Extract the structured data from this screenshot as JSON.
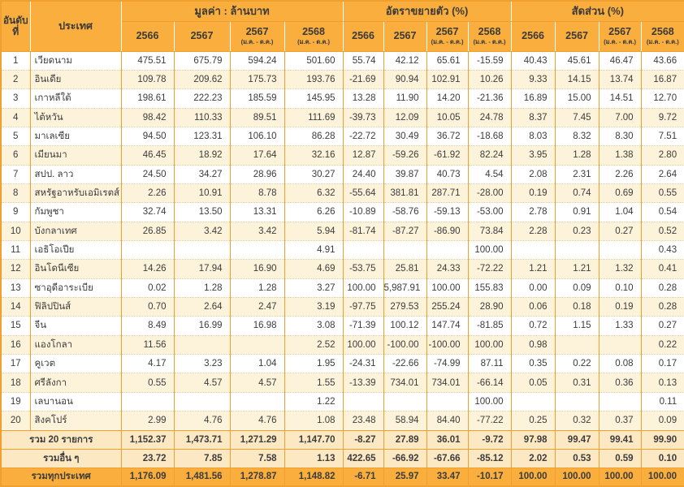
{
  "colors": {
    "header_bg": "#F9AE3D",
    "row_bg": "#FFFFFF",
    "row_alt_bg": "#FDF3DA",
    "summary_bg": "#FCE8C3",
    "total_bg": "#F9AE3D",
    "border": "#EFA02F",
    "dotted_border": "#EBCA8E",
    "text": "#3C3C3C"
  },
  "table": {
    "header": {
      "rank_label": "อันดับที่",
      "country_label": "ประเทศ",
      "groups": [
        "มูลค่า : ล้านบาท",
        "อัตราขยายตัว (%)",
        "สัดส่วน (%)"
      ],
      "year_columns": [
        {
          "year": "2566",
          "sub": ""
        },
        {
          "year": "2567",
          "sub": ""
        },
        {
          "year": "2567",
          "sub": "(ม.ค. - ต.ค.)"
        },
        {
          "year": "2568",
          "sub": "(ม.ค. - ต.ค.)"
        }
      ]
    },
    "rows": [
      {
        "rank": "1",
        "country": "เวียดนาม",
        "values": [
          "475.51",
          "675.79",
          "594.24",
          "501.60"
        ],
        "growth": [
          "55.74",
          "42.12",
          "65.61",
          "-15.59"
        ],
        "share": [
          "40.43",
          "45.61",
          "46.47",
          "43.66"
        ]
      },
      {
        "rank": "2",
        "country": "อินเดีย",
        "values": [
          "109.78",
          "209.62",
          "175.73",
          "193.76"
        ],
        "growth": [
          "-21.69",
          "90.94",
          "102.91",
          "10.26"
        ],
        "share": [
          "9.33",
          "14.15",
          "13.74",
          "16.87"
        ]
      },
      {
        "rank": "3",
        "country": "เกาหลีใต้",
        "values": [
          "198.61",
          "222.23",
          "185.59",
          "145.95"
        ],
        "growth": [
          "13.28",
          "11.90",
          "14.20",
          "-21.36"
        ],
        "share": [
          "16.89",
          "15.00",
          "14.51",
          "12.70"
        ]
      },
      {
        "rank": "4",
        "country": "ไต้หวัน",
        "values": [
          "98.42",
          "110.33",
          "89.51",
          "111.69"
        ],
        "growth": [
          "-39.73",
          "12.09",
          "10.05",
          "24.78"
        ],
        "share": [
          "8.37",
          "7.45",
          "7.00",
          "9.72"
        ]
      },
      {
        "rank": "5",
        "country": "มาเลเซีย",
        "values": [
          "94.50",
          "123.31",
          "106.10",
          "86.28"
        ],
        "growth": [
          "-22.72",
          "30.49",
          "36.72",
          "-18.68"
        ],
        "share": [
          "8.03",
          "8.32",
          "8.30",
          "7.51"
        ]
      },
      {
        "rank": "6",
        "country": "เมียนมา",
        "values": [
          "46.45",
          "18.92",
          "17.64",
          "32.16"
        ],
        "growth": [
          "12.87",
          "-59.26",
          "-61.92",
          "82.24"
        ],
        "share": [
          "3.95",
          "1.28",
          "1.38",
          "2.80"
        ]
      },
      {
        "rank": "7",
        "country": "สปป. ลาว",
        "values": [
          "24.50",
          "34.27",
          "28.96",
          "30.27"
        ],
        "growth": [
          "24.40",
          "39.87",
          "40.73",
          "4.54"
        ],
        "share": [
          "2.08",
          "2.31",
          "2.26",
          "2.64"
        ]
      },
      {
        "rank": "8",
        "country": "สหรัฐอาหรับเอมิเรตส์",
        "values": [
          "2.26",
          "10.91",
          "8.78",
          "6.32"
        ],
        "growth": [
          "-55.64",
          "381.81",
          "287.71",
          "-28.00"
        ],
        "share": [
          "0.19",
          "0.74",
          "0.69",
          "0.55"
        ]
      },
      {
        "rank": "9",
        "country": "กัมพูชา",
        "values": [
          "32.74",
          "13.50",
          "13.31",
          "6.26"
        ],
        "growth": [
          "-10.89",
          "-58.76",
          "-59.13",
          "-53.00"
        ],
        "share": [
          "2.78",
          "0.91",
          "1.04",
          "0.54"
        ]
      },
      {
        "rank": "10",
        "country": "บังกลาเทศ",
        "values": [
          "26.85",
          "3.42",
          "3.42",
          "5.94"
        ],
        "growth": [
          "-81.74",
          "-87.27",
          "-86.90",
          "73.84"
        ],
        "share": [
          "2.28",
          "0.23",
          "0.27",
          "0.52"
        ]
      },
      {
        "rank": "11",
        "country": "เอธิโอเปีย",
        "values": [
          "",
          "",
          "",
          "4.91"
        ],
        "growth": [
          "",
          "",
          "",
          "100.00"
        ],
        "share": [
          "",
          "",
          "",
          "0.43"
        ]
      },
      {
        "rank": "12",
        "country": "อินโดนีเซีย",
        "values": [
          "14.26",
          "17.94",
          "16.90",
          "4.69"
        ],
        "growth": [
          "-53.75",
          "25.81",
          "24.33",
          "-72.22"
        ],
        "share": [
          "1.21",
          "1.21",
          "1.32",
          "0.41"
        ]
      },
      {
        "rank": "13",
        "country": "ซาอุดีอาระเบีย",
        "values": [
          "0.02",
          "1.28",
          "1.28",
          "3.27"
        ],
        "growth": [
          "100.00",
          "5,987.91",
          "100.00",
          "155.83"
        ],
        "share": [
          "0.00",
          "0.09",
          "0.10",
          "0.28"
        ]
      },
      {
        "rank": "14",
        "country": "ฟิลิปปินส์",
        "values": [
          "0.70",
          "2.64",
          "2.47",
          "3.19"
        ],
        "growth": [
          "-97.75",
          "279.53",
          "255.24",
          "28.90"
        ],
        "share": [
          "0.06",
          "0.18",
          "0.19",
          "0.28"
        ]
      },
      {
        "rank": "15",
        "country": "จีน",
        "values": [
          "8.49",
          "16.99",
          "16.98",
          "3.08"
        ],
        "growth": [
          "-71.39",
          "100.12",
          "147.74",
          "-81.85"
        ],
        "share": [
          "0.72",
          "1.15",
          "1.33",
          "0.27"
        ]
      },
      {
        "rank": "16",
        "country": "แองโกลา",
        "values": [
          "11.56",
          "",
          "",
          "2.52"
        ],
        "growth": [
          "100.00",
          "-100.00",
          "-100.00",
          "100.00"
        ],
        "share": [
          "0.98",
          "",
          "",
          "0.22"
        ]
      },
      {
        "rank": "17",
        "country": "คูเวต",
        "values": [
          "4.17",
          "3.23",
          "1.04",
          "1.95"
        ],
        "growth": [
          "-24.31",
          "-22.66",
          "-74.99",
          "87.11"
        ],
        "share": [
          "0.35",
          "0.22",
          "0.08",
          "0.17"
        ]
      },
      {
        "rank": "18",
        "country": "ศรีลังกา",
        "values": [
          "0.55",
          "4.57",
          "4.57",
          "1.55"
        ],
        "growth": [
          "-13.39",
          "734.01",
          "734.01",
          "-66.14"
        ],
        "share": [
          "0.05",
          "0.31",
          "0.36",
          "0.13"
        ]
      },
      {
        "rank": "19",
        "country": "เลบานอน",
        "values": [
          "",
          "",
          "",
          "1.22"
        ],
        "growth": [
          "",
          "",
          "",
          "100.00"
        ],
        "share": [
          "",
          "",
          "",
          "0.11"
        ]
      },
      {
        "rank": "20",
        "country": "สิงคโปร์",
        "values": [
          "2.99",
          "4.76",
          "4.76",
          "1.08"
        ],
        "growth": [
          "23.48",
          "58.94",
          "84.40",
          "-77.22"
        ],
        "share": [
          "0.25",
          "0.32",
          "0.37",
          "0.09"
        ]
      }
    ],
    "summary_rows": [
      {
        "label": "รวม 20 รายการ",
        "style": "light",
        "values": [
          "1,152.37",
          "1,473.71",
          "1,271.29",
          "1,147.70"
        ],
        "growth": [
          "-8.27",
          "27.89",
          "36.01",
          "-9.72"
        ],
        "share": [
          "97.98",
          "99.47",
          "99.41",
          "99.90"
        ]
      },
      {
        "label": "รวมอื่น ๆ",
        "style": "light",
        "values": [
          "23.72",
          "7.85",
          "7.58",
          "1.13"
        ],
        "growth": [
          "422.65",
          "-66.92",
          "-67.66",
          "-85.12"
        ],
        "share": [
          "2.02",
          "0.53",
          "0.59",
          "0.10"
        ]
      },
      {
        "label": "รวมทุกประเทศ",
        "style": "total",
        "values": [
          "1,176.09",
          "1,481.56",
          "1,278.87",
          "1,148.82"
        ],
        "growth": [
          "-6.71",
          "25.97",
          "33.47",
          "-10.17"
        ],
        "share": [
          "100.00",
          "100.00",
          "100.00",
          "100.00"
        ]
      }
    ]
  }
}
